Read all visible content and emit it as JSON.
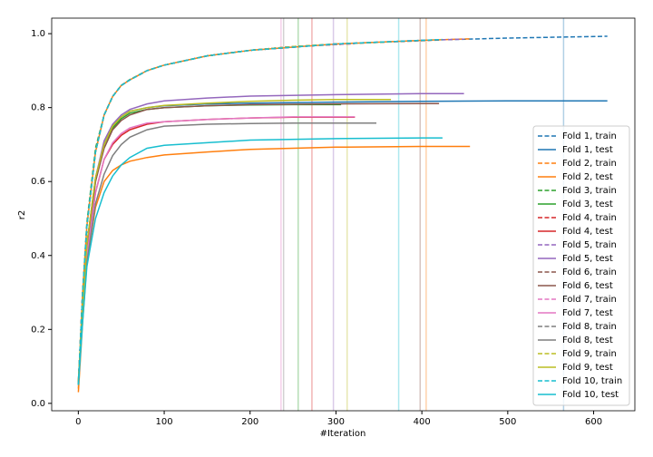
{
  "chart_data": {
    "type": "line",
    "xlabel": "#Iteration",
    "ylabel": "r2",
    "xlim": [
      -31,
      648
    ],
    "ylim": [
      -0.02,
      1.042
    ],
    "xticks": [
      0,
      100,
      200,
      300,
      400,
      500,
      600
    ],
    "yticks": [
      {
        "value": 0,
        "label": "0.0"
      },
      0.2,
      0.4,
      0.6,
      0.8,
      {
        "value": 1,
        "label": "1.0"
      }
    ],
    "legend": "lower right",
    "vlines": [
      {
        "x": 565,
        "color": "#1f77b4"
      },
      {
        "x": 405,
        "color": "#ff7f0e"
      },
      {
        "x": 256,
        "color": "#2ca02c"
      },
      {
        "x": 272,
        "color": "#d62728"
      },
      {
        "x": 297,
        "color": "#9467bd"
      },
      {
        "x": 398,
        "color": "#8c564b"
      },
      {
        "x": 236,
        "color": "#e377c2"
      },
      {
        "x": 239,
        "color": "#7f7f7f"
      },
      {
        "x": 313,
        "color": "#bcbd22"
      },
      {
        "x": 373,
        "color": "#17becf"
      }
    ],
    "series": [
      {
        "name": "Fold 1, train",
        "color": "#1f77b4",
        "linestyle": "dashed",
        "x": [
          0,
          5,
          10,
          20,
          30,
          40,
          50,
          60,
          80,
          100,
          150,
          200,
          300,
          400,
          500,
          616
        ],
        "values": [
          0.05,
          0.3,
          0.48,
          0.68,
          0.78,
          0.83,
          0.86,
          0.875,
          0.9,
          0.915,
          0.94,
          0.955,
          0.972,
          0.982,
          0.988,
          0.993
        ]
      },
      {
        "name": "Fold 1, test",
        "color": "#1f77b4",
        "linestyle": "solid",
        "x": [
          0,
          5,
          10,
          20,
          30,
          40,
          50,
          60,
          80,
          100,
          150,
          200,
          300,
          400,
          500,
          616
        ],
        "values": [
          0.05,
          0.25,
          0.42,
          0.6,
          0.7,
          0.75,
          0.775,
          0.79,
          0.8,
          0.805,
          0.81,
          0.812,
          0.815,
          0.817,
          0.818,
          0.818
        ]
      },
      {
        "name": "Fold 2, train",
        "color": "#ff7f0e",
        "linestyle": "dashed",
        "x": [
          0,
          5,
          10,
          20,
          30,
          40,
          50,
          60,
          80,
          100,
          150,
          200,
          300,
          400,
          456
        ],
        "values": [
          0.04,
          0.3,
          0.48,
          0.68,
          0.78,
          0.83,
          0.86,
          0.875,
          0.9,
          0.915,
          0.94,
          0.955,
          0.972,
          0.982,
          0.986
        ]
      },
      {
        "name": "Fold 2, test",
        "color": "#ff7f0e",
        "linestyle": "solid",
        "x": [
          0,
          5,
          10,
          20,
          30,
          40,
          50,
          60,
          80,
          100,
          150,
          200,
          300,
          400,
          456
        ],
        "values": [
          0.03,
          0.22,
          0.38,
          0.53,
          0.6,
          0.63,
          0.645,
          0.655,
          0.665,
          0.672,
          0.68,
          0.687,
          0.693,
          0.695,
          0.695
        ]
      },
      {
        "name": "Fold 3, train",
        "color": "#2ca02c",
        "linestyle": "dashed",
        "x": [
          0,
          5,
          10,
          20,
          30,
          40,
          50,
          60,
          80,
          100,
          150,
          200,
          250,
          306
        ],
        "values": [
          0.05,
          0.3,
          0.49,
          0.69,
          0.78,
          0.83,
          0.86,
          0.876,
          0.9,
          0.915,
          0.94,
          0.955,
          0.965,
          0.971
        ]
      },
      {
        "name": "Fold 3, test",
        "color": "#2ca02c",
        "linestyle": "solid",
        "x": [
          0,
          5,
          10,
          20,
          30,
          40,
          50,
          60,
          80,
          100,
          150,
          200,
          250,
          306
        ],
        "values": [
          0.06,
          0.26,
          0.43,
          0.61,
          0.7,
          0.745,
          0.77,
          0.785,
          0.795,
          0.8,
          0.805,
          0.807,
          0.808,
          0.808
        ]
      },
      {
        "name": "Fold 4, train",
        "color": "#d62728",
        "linestyle": "dashed",
        "x": [
          0,
          5,
          10,
          20,
          30,
          40,
          50,
          60,
          80,
          100,
          150,
          200,
          250,
          322
        ],
        "values": [
          0.05,
          0.3,
          0.48,
          0.68,
          0.78,
          0.83,
          0.86,
          0.875,
          0.9,
          0.915,
          0.94,
          0.955,
          0.965,
          0.973
        ]
      },
      {
        "name": "Fold 4, test",
        "color": "#d62728",
        "linestyle": "solid",
        "x": [
          0,
          5,
          10,
          20,
          30,
          40,
          50,
          60,
          80,
          100,
          150,
          200,
          250,
          322
        ],
        "values": [
          0.05,
          0.24,
          0.4,
          0.57,
          0.66,
          0.7,
          0.725,
          0.74,
          0.755,
          0.762,
          0.768,
          0.772,
          0.774,
          0.774
        ]
      },
      {
        "name": "Fold 5, train",
        "color": "#9467bd",
        "linestyle": "dashed",
        "x": [
          0,
          5,
          10,
          20,
          30,
          40,
          50,
          60,
          80,
          100,
          150,
          200,
          300,
          400,
          449
        ],
        "values": [
          0.05,
          0.3,
          0.48,
          0.68,
          0.78,
          0.83,
          0.86,
          0.875,
          0.9,
          0.915,
          0.94,
          0.955,
          0.972,
          0.982,
          0.985
        ]
      },
      {
        "name": "Fold 5, test",
        "color": "#9467bd",
        "linestyle": "solid",
        "x": [
          0,
          5,
          10,
          20,
          30,
          40,
          50,
          60,
          80,
          100,
          150,
          200,
          300,
          400,
          449
        ],
        "values": [
          0.06,
          0.26,
          0.43,
          0.61,
          0.71,
          0.755,
          0.78,
          0.795,
          0.81,
          0.818,
          0.826,
          0.831,
          0.835,
          0.838,
          0.838
        ]
      },
      {
        "name": "Fold 6, train",
        "color": "#8c564b",
        "linestyle": "dashed",
        "x": [
          0,
          5,
          10,
          20,
          30,
          40,
          50,
          60,
          80,
          100,
          150,
          200,
          300,
          400,
          420
        ],
        "values": [
          0.05,
          0.3,
          0.48,
          0.68,
          0.78,
          0.83,
          0.86,
          0.875,
          0.9,
          0.915,
          0.94,
          0.955,
          0.972,
          0.981,
          0.983
        ]
      },
      {
        "name": "Fold 6, test",
        "color": "#8c564b",
        "linestyle": "solid",
        "x": [
          0,
          5,
          10,
          20,
          30,
          40,
          50,
          60,
          80,
          100,
          150,
          200,
          300,
          400,
          420
        ],
        "values": [
          0.05,
          0.25,
          0.42,
          0.6,
          0.69,
          0.74,
          0.765,
          0.78,
          0.795,
          0.8,
          0.805,
          0.808,
          0.81,
          0.811,
          0.811
        ]
      },
      {
        "name": "Fold 7, train",
        "color": "#e377c2",
        "linestyle": "dashed",
        "x": [
          0,
          5,
          10,
          20,
          30,
          40,
          50,
          60,
          80,
          100,
          150,
          200,
          250,
          322
        ],
        "values": [
          0.05,
          0.3,
          0.48,
          0.68,
          0.78,
          0.83,
          0.86,
          0.875,
          0.9,
          0.915,
          0.94,
          0.955,
          0.965,
          0.973
        ]
      },
      {
        "name": "Fold 7, test",
        "color": "#e377c2",
        "linestyle": "solid",
        "x": [
          0,
          5,
          10,
          20,
          30,
          40,
          50,
          60,
          80,
          100,
          150,
          200,
          250,
          322
        ],
        "values": [
          0.05,
          0.24,
          0.4,
          0.57,
          0.66,
          0.705,
          0.73,
          0.745,
          0.758,
          0.762,
          0.768,
          0.772,
          0.775,
          0.775
        ]
      },
      {
        "name": "Fold 8, train",
        "color": "#7f7f7f",
        "linestyle": "dashed",
        "x": [
          0,
          5,
          10,
          20,
          30,
          40,
          50,
          60,
          80,
          100,
          150,
          200,
          250,
          300,
          347
        ],
        "values": [
          0.05,
          0.3,
          0.48,
          0.68,
          0.78,
          0.83,
          0.86,
          0.875,
          0.9,
          0.915,
          0.94,
          0.955,
          0.965,
          0.972,
          0.976
        ]
      },
      {
        "name": "Fold 8, test",
        "color": "#7f7f7f",
        "linestyle": "solid",
        "x": [
          0,
          5,
          10,
          20,
          30,
          40,
          50,
          60,
          80,
          100,
          150,
          200,
          250,
          300,
          347
        ],
        "values": [
          0.05,
          0.23,
          0.38,
          0.54,
          0.62,
          0.67,
          0.7,
          0.72,
          0.74,
          0.75,
          0.755,
          0.757,
          0.758,
          0.758,
          0.758
        ]
      },
      {
        "name": "Fold 9, train",
        "color": "#bcbd22",
        "linestyle": "dashed",
        "x": [
          0,
          5,
          10,
          20,
          30,
          40,
          50,
          60,
          80,
          100,
          150,
          200,
          250,
          300,
          364
        ],
        "values": [
          0.05,
          0.3,
          0.48,
          0.68,
          0.78,
          0.83,
          0.86,
          0.875,
          0.9,
          0.915,
          0.94,
          0.955,
          0.965,
          0.972,
          0.978
        ]
      },
      {
        "name": "Fold 9, test",
        "color": "#bcbd22",
        "linestyle": "solid",
        "x": [
          0,
          5,
          10,
          20,
          30,
          40,
          50,
          60,
          80,
          100,
          150,
          200,
          250,
          300,
          364
        ],
        "values": [
          0.06,
          0.26,
          0.43,
          0.61,
          0.7,
          0.75,
          0.775,
          0.79,
          0.8,
          0.806,
          0.812,
          0.817,
          0.82,
          0.822,
          0.822
        ]
      },
      {
        "name": "Fold 10, train",
        "color": "#17becf",
        "linestyle": "dashed",
        "x": [
          0,
          5,
          10,
          20,
          30,
          40,
          50,
          60,
          80,
          100,
          150,
          200,
          300,
          400,
          424
        ],
        "values": [
          0.05,
          0.3,
          0.48,
          0.68,
          0.78,
          0.83,
          0.86,
          0.875,
          0.9,
          0.915,
          0.94,
          0.955,
          0.972,
          0.982,
          0.984
        ]
      },
      {
        "name": "Fold 10, test",
        "color": "#17becf",
        "linestyle": "solid",
        "x": [
          0,
          5,
          10,
          20,
          30,
          40,
          50,
          60,
          80,
          100,
          150,
          200,
          300,
          400,
          424
        ],
        "values": [
          0.05,
          0.22,
          0.37,
          0.5,
          0.57,
          0.615,
          0.645,
          0.665,
          0.69,
          0.698,
          0.705,
          0.712,
          0.716,
          0.718,
          0.718
        ]
      }
    ]
  }
}
